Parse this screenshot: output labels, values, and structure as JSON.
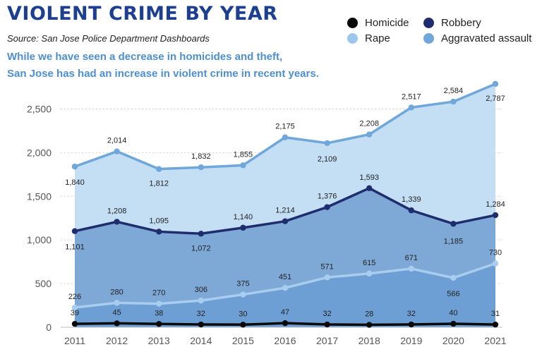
{
  "header": {
    "title": "VIOLENT CRIME BY YEAR",
    "source": "Source: San Jose Police Department Dashboards",
    "subtitle_line1": "While we have seen a decrease in homicides and theft,",
    "subtitle_line2": "San Jose has had an increase in violent crime in recent years."
  },
  "legend": [
    {
      "label": "Homicide",
      "color": "#0a0a0a"
    },
    {
      "label": "Robbery",
      "color": "#1f2d6e"
    },
    {
      "label": "Rape",
      "color": "#9dc6ec"
    },
    {
      "label": "Aggravated assault",
      "color": "#6fa7db"
    }
  ],
  "chart_data": {
    "type": "area",
    "title": "VIOLENT CRIME BY YEAR",
    "x": [
      "2011",
      "2012",
      "2013",
      "2014",
      "2015",
      "2016",
      "2017",
      "2018",
      "2019",
      "2020",
      "2021"
    ],
    "ylim": [
      0,
      2800
    ],
    "yticks": [
      0,
      500,
      1000,
      1500,
      2000,
      2500
    ],
    "ytick_labels": [
      "0",
      "500",
      "1,000",
      "1,500",
      "2,000",
      "2,500"
    ],
    "grid": "horizontal dashed",
    "legend_position": "top-right",
    "series": [
      {
        "name": "Aggravated assault",
        "color": "#6fa7db",
        "fill": "#c4def4",
        "values": [
          1840,
          2014,
          1812,
          1832,
          1855,
          2175,
          2109,
          2208,
          2517,
          2584,
          2787
        ],
        "labels": [
          "1,840",
          "2,014",
          "1,812",
          "1,832",
          "1,855",
          "2,175",
          "2,109",
          "2,208",
          "2,517",
          "2,584",
          "2,787"
        ]
      },
      {
        "name": "Robbery",
        "color": "#1f2d6e",
        "fill": "#7ea8d6",
        "values": [
          1101,
          1208,
          1095,
          1072,
          1140,
          1214,
          1376,
          1593,
          1339,
          1185,
          1284
        ],
        "labels": [
          "1,101",
          "1,208",
          "1,095",
          "1,072",
          "1,140",
          "1,214",
          "1,376",
          "1,593",
          "1,339",
          "1,185",
          "1,284"
        ]
      },
      {
        "name": "Rape",
        "color": "#a9cdef",
        "fill": "#6e9fd4",
        "values": [
          226,
          280,
          270,
          306,
          375,
          451,
          571,
          615,
          671,
          566,
          730
        ],
        "labels": [
          "226",
          "280",
          "270",
          "306",
          "375",
          "451",
          "571",
          "615",
          "671",
          "566",
          "730"
        ]
      },
      {
        "name": "Homicide",
        "color": "#0a0a0a",
        "fill": "#6e9fd4",
        "values": [
          39,
          45,
          38,
          32,
          30,
          47,
          32,
          28,
          32,
          40,
          31
        ],
        "labels": [
          "39",
          "45",
          "38",
          "32",
          "30",
          "47",
          "32",
          "28",
          "32",
          "40",
          "31"
        ]
      }
    ]
  }
}
